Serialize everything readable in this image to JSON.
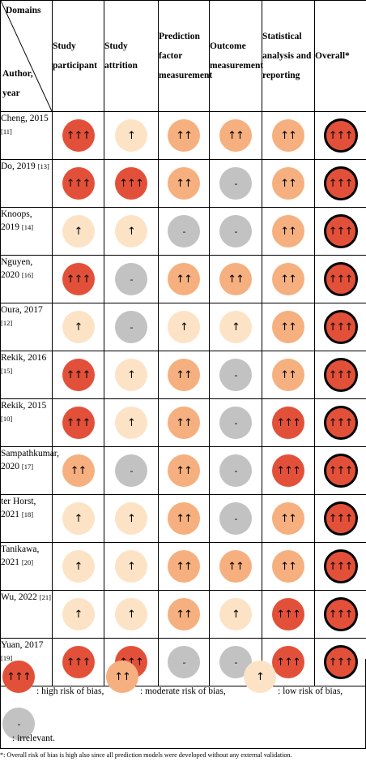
{
  "header": {
    "domains_label": "Domains",
    "author_label": "Author,",
    "year_label": "year",
    "columns": [
      "Study participant",
      "Study attrition",
      "Prediction factor measurement",
      "Outcome measurement",
      "Statistical analysis and reporting",
      "Overall*"
    ]
  },
  "rows": [
    {
      "author": "Cheng, 2015",
      "ref": "[11]",
      "ratings": [
        "high",
        "low",
        "mod",
        "mod",
        "mod",
        "high"
      ]
    },
    {
      "author": "Do, 2019",
      "ref": "[13]",
      "ratings": [
        "high",
        "high",
        "mod",
        "irr",
        "mod",
        "high"
      ]
    },
    {
      "author": "Knoops, 2019",
      "ref": "[14]",
      "ratings": [
        "low",
        "low",
        "irr",
        "irr",
        "mod",
        "high"
      ]
    },
    {
      "author": "Nguyen, 2020",
      "ref": "[16]",
      "ratings": [
        "high",
        "irr",
        "mod",
        "mod",
        "mod",
        "high"
      ]
    },
    {
      "author": "Oura, 2017",
      "ref": "[12]",
      "ratings": [
        "low",
        "irr",
        "low",
        "low",
        "mod",
        "high"
      ]
    },
    {
      "author": "Rekik, 2016",
      "ref": "[15]",
      "ratings": [
        "high",
        "low",
        "mod",
        "irr",
        "mod",
        "high"
      ]
    },
    {
      "author": "Rekik, 2015",
      "ref": "[10]",
      "ratings": [
        "high",
        "low",
        "mod",
        "irr",
        "high",
        "high"
      ]
    },
    {
      "author": "Sampathkumar, 2020",
      "ref": "[17]",
      "ratings": [
        "mod",
        "irr",
        "mod",
        "irr",
        "high",
        "high"
      ]
    },
    {
      "author": "ter Horst, 2021",
      "ref": "[18]",
      "ratings": [
        "low",
        "low",
        "mod",
        "irr",
        "mod",
        "high"
      ]
    },
    {
      "author": "Tanikawa, 2021",
      "ref": "[20]",
      "ratings": [
        "low",
        "low",
        "mod",
        "mod",
        "mod",
        "high"
      ]
    },
    {
      "author": "Wu, 2022",
      "ref": "[21]",
      "ratings": [
        "low",
        "low",
        "mod",
        "low",
        "high",
        "high"
      ]
    },
    {
      "author": "Yuan, 2017",
      "ref": "[19]",
      "ratings": [
        "high",
        "high",
        "irr",
        "irr",
        "high",
        "high"
      ]
    }
  ],
  "symbols": {
    "high": "↑↑↑",
    "mod": "↑↑",
    "low": "↑",
    "irr": "-"
  },
  "legend": {
    "high": ": high risk of bias,",
    "mod": ": moderate risk of bias,",
    "low": ": low risk of bias,",
    "irr": ": irrelevant."
  },
  "footnote": "*: Overall risk of bias is high also since all prediction models were developed without any external validation.",
  "colors": {
    "high": "#e3503a",
    "moderate": "#f6b07f",
    "low": "#fde3c6",
    "irrelevant": "#c2c2c2"
  }
}
